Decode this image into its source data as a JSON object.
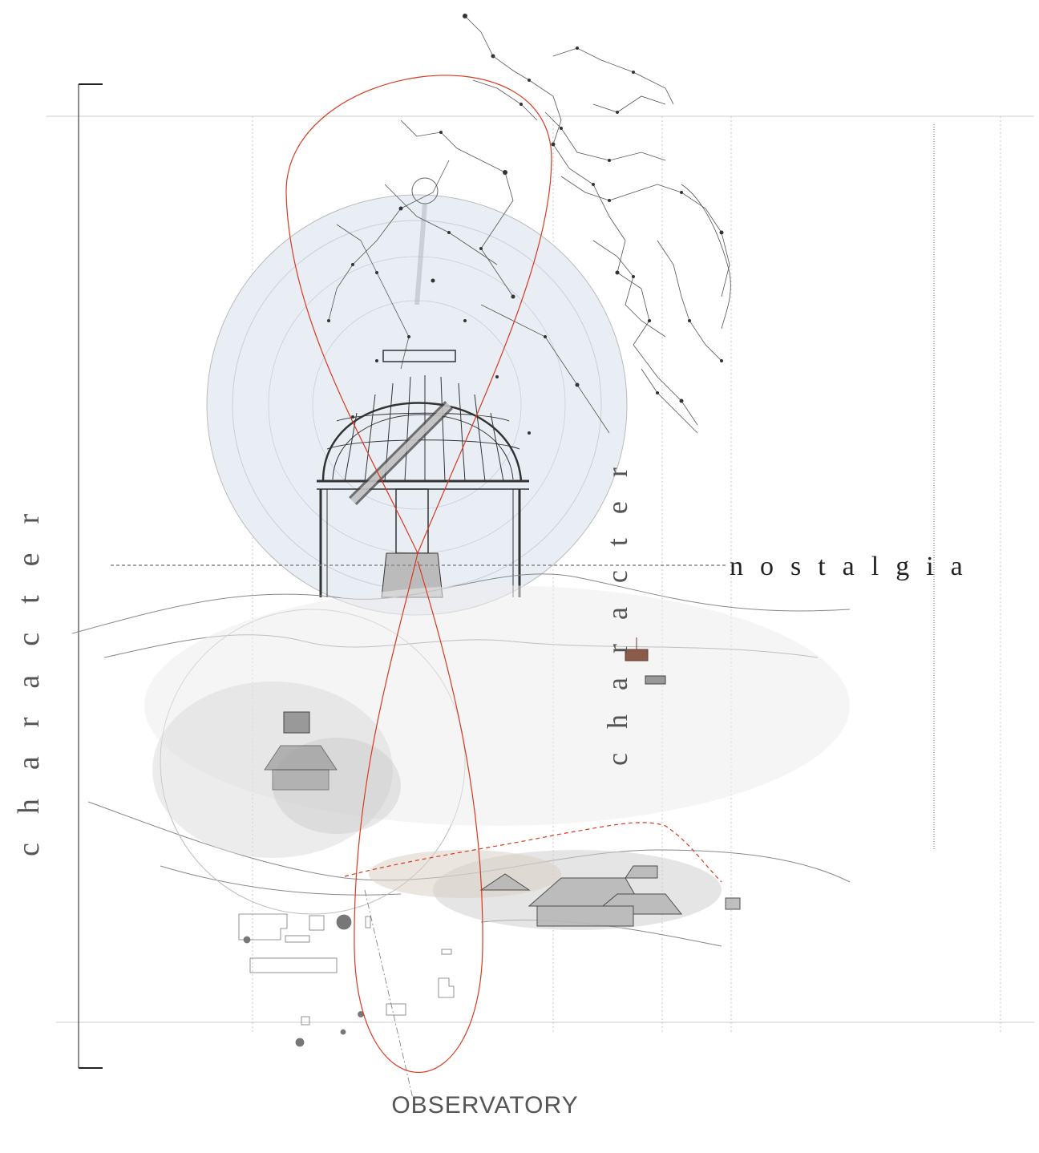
{
  "labels": {
    "character_left": "character",
    "character_mid": "character",
    "nostalgia": "nostalgia",
    "observatory": "OBSERVATORY"
  },
  "colors": {
    "accent_red": "#d9381e",
    "line_gray": "#999999",
    "sketch_gray": "#777777",
    "celestial_blue": "#e9eef5"
  }
}
